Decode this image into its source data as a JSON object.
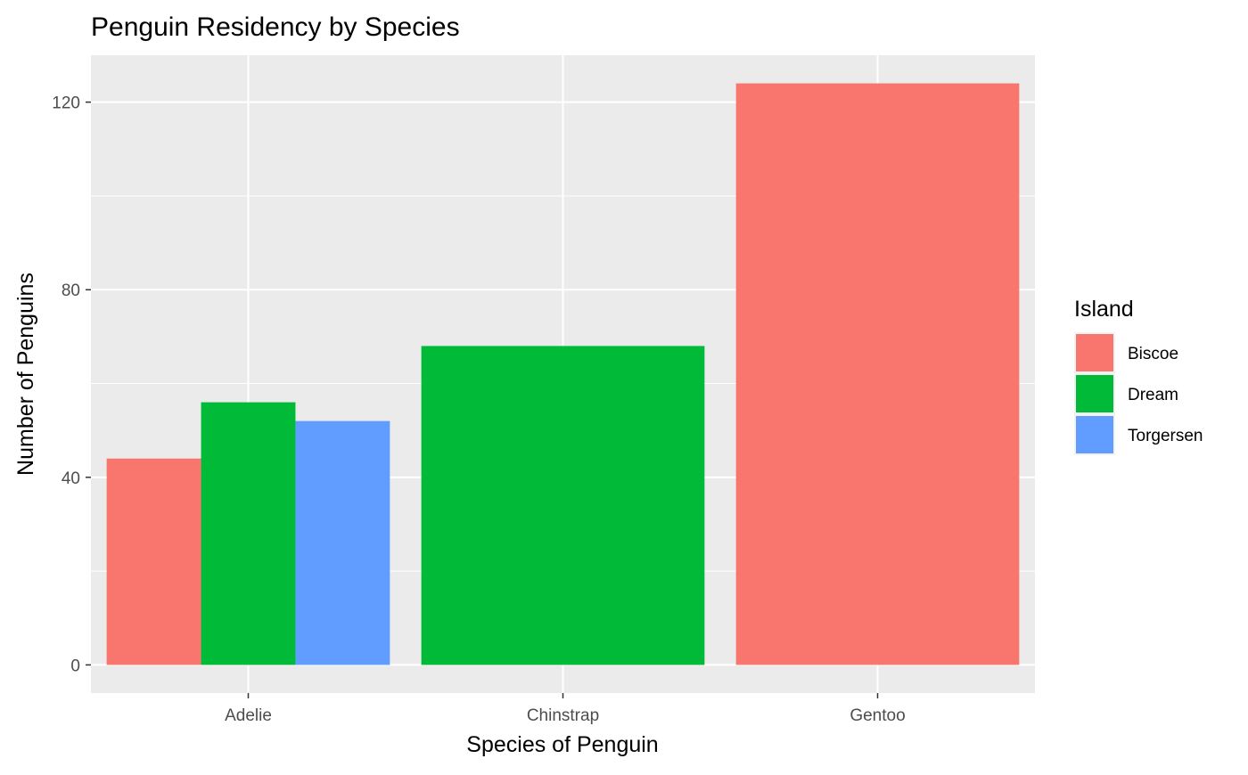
{
  "chart_data": {
    "type": "bar",
    "title": "Penguin Residency by Species",
    "xlabel": "Species of Penguin",
    "ylabel": "Number of Penguins",
    "categories": [
      "Adelie",
      "Chinstrap",
      "Gentoo"
    ],
    "ylim": [
      -6,
      130
    ],
    "yticks": [
      0,
      40,
      80,
      120
    ],
    "grid": true,
    "legend": {
      "title": "Island",
      "position": "right"
    },
    "series": [
      {
        "name": "Biscoe",
        "color": "#F8766D",
        "values": [
          44,
          null,
          124
        ]
      },
      {
        "name": "Dream",
        "color": "#00BA38",
        "values": [
          56,
          68,
          null
        ]
      },
      {
        "name": "Torgersen",
        "color": "#619CFF",
        "values": [
          52,
          null,
          null
        ]
      }
    ]
  }
}
